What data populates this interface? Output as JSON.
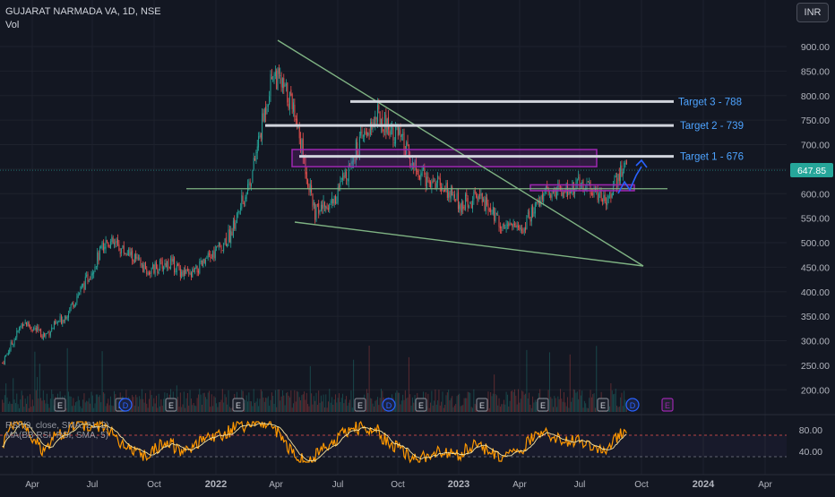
{
  "header": {
    "symbol_title": "GUJARAT NARMADA VA, 1D, NSE",
    "volume_label": "Vol",
    "currency_button": "INR"
  },
  "indicator": {
    "rsi_legend": "RSI (9, close, SMA, 21, 2)",
    "rsi_legend_2": "MA(BB RSI, RSI, SMA, 5)"
  },
  "colors": {
    "background": "#131722",
    "bull": "#26a69a",
    "bear": "#ef5350",
    "trendline": "#7fb383",
    "target_line": "#d1d4dc",
    "resistance_box": "#9c27b0",
    "annotation_text": "#4da3ff",
    "projection_arrow": "#2962ff",
    "rsi_line": "#ff9800",
    "rsi_ma": "#f5e3a0",
    "earnings_badge": "#787b86",
    "dividend_badge": "#2962ff"
  },
  "price_axis": {
    "ticks": [
      "900.00",
      "850.00",
      "800.00",
      "750.00",
      "700.00",
      "650.00",
      "600.00",
      "550.00",
      "500.00",
      "450.00",
      "400.00",
      "350.00",
      "300.00",
      "250.00",
      "200.00"
    ],
    "last_price": "647.85"
  },
  "rsi_axis": {
    "ticks": [
      "80.00",
      "40.00"
    ],
    "upper_band": 70,
    "lower_band": 30
  },
  "time_axis": {
    "labels": [
      "Apr",
      "Jul",
      "Oct",
      "2022",
      "Apr",
      "Jul",
      "Oct",
      "2023",
      "Apr",
      "Jul",
      "Oct",
      "2024",
      "Apr"
    ]
  },
  "targets": [
    {
      "label": "Target 3 - 788",
      "price": 788
    },
    {
      "label": "Target 2 - 739",
      "price": 739
    },
    {
      "label": "Target 1 - 676",
      "price": 676
    }
  ],
  "events": [
    "E",
    "E",
    "D",
    "E",
    "E",
    "E",
    "D",
    "E",
    "E",
    "E",
    "E",
    "D",
    "E"
  ],
  "chart_data": {
    "type": "candlestick",
    "title": "GUJARAT NARMADA VA, 1D, NSE",
    "ylim": [
      170,
      940
    ],
    "last_close": 647.85,
    "x": [
      "2021-03",
      "2021-04",
      "2021-05",
      "2021-06",
      "2021-07",
      "2021-08",
      "2021-09",
      "2021-10",
      "2021-11",
      "2021-12",
      "2022-01",
      "2022-02",
      "2022-03",
      "2022-04",
      "2022-05",
      "2022-06",
      "2022-07",
      "2022-08",
      "2022-09",
      "2022-10",
      "2022-11",
      "2022-12",
      "2023-01",
      "2023-02",
      "2023-03",
      "2023-04",
      "2023-05",
      "2023-06",
      "2023-07",
      "2023-08",
      "2023-09"
    ],
    "series": [
      {
        "name": "close",
        "values": [
          255,
          340,
          310,
          350,
          420,
          505,
          480,
          440,
          460,
          430,
          470,
          520,
          640,
          850,
          780,
          560,
          590,
          690,
          760,
          720,
          640,
          620,
          580,
          590,
          540,
          530,
          600,
          610,
          620,
          590,
          660
        ]
      }
    ],
    "resistance_zones": [
      [
        655,
        690
      ],
      [
        606,
        618
      ]
    ],
    "horizontal_support": 610,
    "rsi": {
      "ylim": [
        0,
        100
      ],
      "bands": [
        30,
        70
      ]
    }
  }
}
